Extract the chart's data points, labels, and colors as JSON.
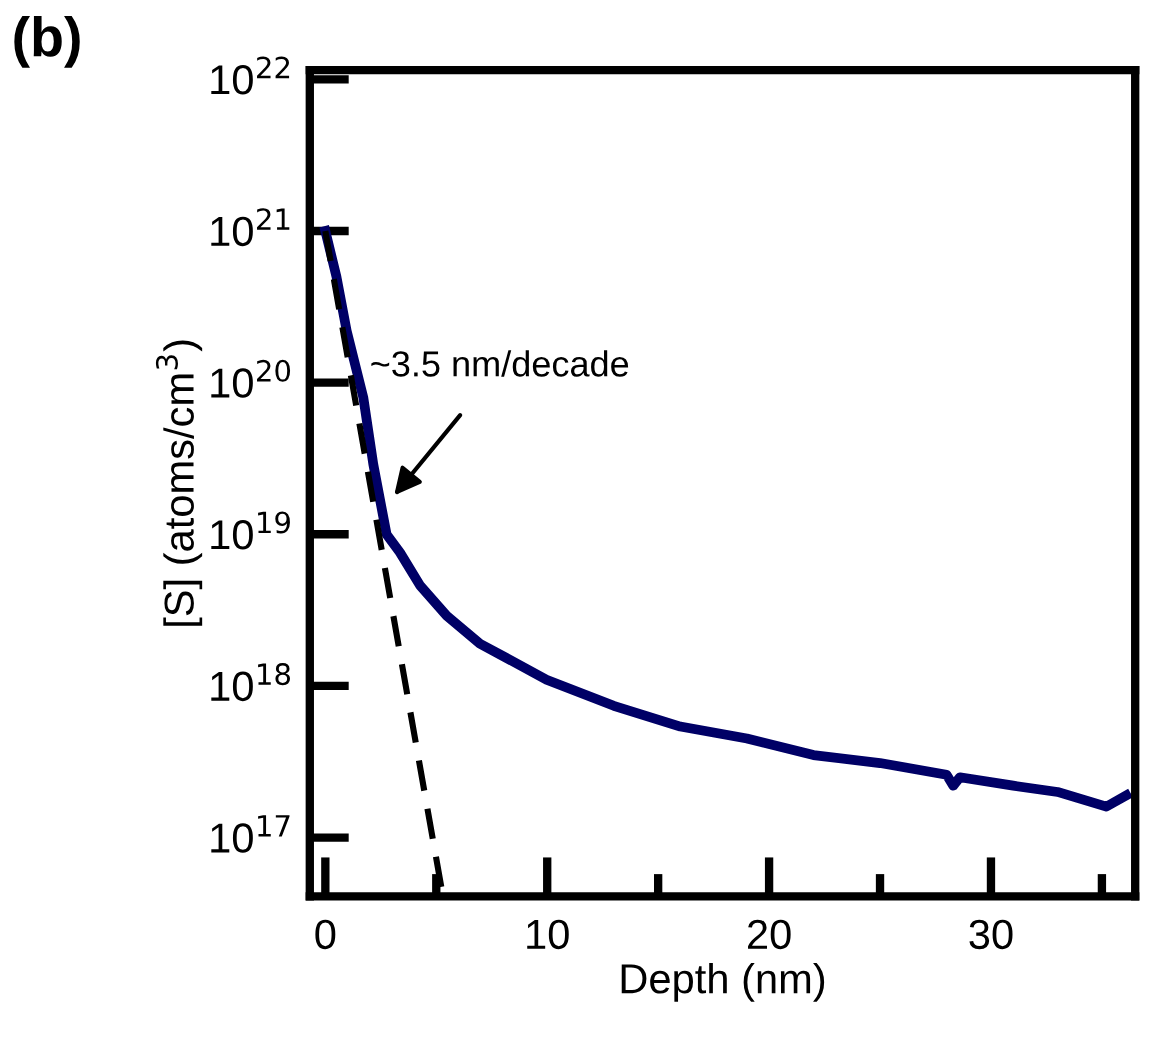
{
  "chart_data": {
    "type": "line",
    "xlabel": "Depth (nm)",
    "ylabel": "[S] (atoms/cm$^{3}$)",
    "log": "y",
    "xlim": [
      -0.7,
      36.5
    ],
    "ylim": [
      4.1e+16,
      1.15e+22
    ],
    "xticks": [
      0,
      {
        "value": 5,
        "label": null
      },
      10,
      {
        "value": 15,
        "label": null
      },
      20,
      {
        "value": 25,
        "label": null
      },
      30,
      {
        "value": 35,
        "label": null
      }
    ],
    "yticks": [
      {
        "value": 1e+17,
        "label": "10$^{17}$"
      },
      {
        "value": 1e+18,
        "label": "10$^{18}$"
      },
      {
        "value": 1e+19,
        "label": "10$^{19}$"
      },
      {
        "value": 1e+20,
        "label": "10$^{20}$"
      },
      {
        "value": 1e+21,
        "label": "10$^{21}$"
      },
      {
        "value": 1e+22,
        "label": "10$^{22}$"
      }
    ],
    "grid": false,
    "legend": false,
    "series": [
      {
        "color": "#000066",
        "line_style": "solid",
        "x": [
          0,
          0.5,
          0.96,
          1.71,
          2.16,
          2.76,
          3.36,
          4.27,
          5.47,
          6.97,
          9.97,
          13.0,
          16.0,
          19.0,
          22.0,
          25.0,
          28.0,
          28.3,
          28.6,
          31.0,
          33.0,
          35.2,
          36.1
        ],
        "values": [
          1e+21,
          5e+20,
          2.2e+20,
          8e+19,
          2.9e+19,
          1e+19,
          7.6e+18,
          4.6e+18,
          2.9e+18,
          1.9e+18,
          1.1e+18,
          7.4e+17,
          5.4e+17,
          4.5e+17,
          3.5e+17,
          3.1e+17,
          2.6e+17,
          2.2e+17,
          2.5e+17,
          2.2e+17,
          2e+17,
          1.6e+17,
          1.9e+17
        ]
      },
      {
        "color": "#000000",
        "line_style": "dashed",
        "x": [
          0,
          5.3
        ],
        "values": [
          1e+21,
          4.1e+16
        ]
      }
    ],
    "annotations": [
      {
        "text": "~3.5 nm/decade",
        "x": 3.1,
        "y": 1.8e+19
      },
      "(b)"
    ]
  }
}
